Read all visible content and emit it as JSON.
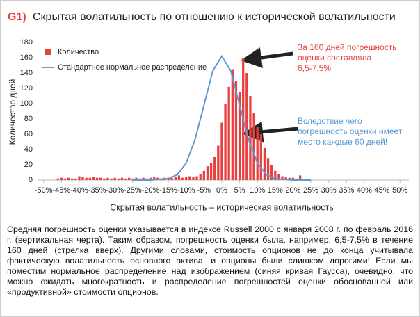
{
  "chart_data": {
    "type": "histogram-line",
    "label": "G1)",
    "title": "Скрытая волатильность по отношению  к исторической волатильности",
    "x_label": "Скрытая волатильность – историческая волатильность",
    "y_label": "Количество дней",
    "xlim": [
      -51.5,
      52.5
    ],
    "ylim": [
      0,
      180
    ],
    "grid": false,
    "legend": "upper-left",
    "yticks": [
      0,
      20,
      40,
      60,
      80,
      100,
      120,
      140,
      160,
      180
    ],
    "xticks": [
      {
        "value": -50,
        "label": "-50%"
      },
      {
        "value": -45,
        "label": "-45%"
      },
      {
        "value": -40,
        "label": "-40%"
      },
      {
        "value": -35,
        "label": "-35%"
      },
      {
        "value": -30,
        "label": "-30%"
      },
      {
        "value": -25,
        "label": "-25%"
      },
      {
        "value": -20,
        "label": "-20%"
      },
      {
        "value": -15,
        "label": "-15%"
      },
      {
        "value": -10,
        "label": "-10%"
      },
      {
        "value": -5,
        "label": "-5%"
      },
      {
        "value": 0,
        "label": "0%"
      },
      {
        "value": 5,
        "label": "5%"
      },
      {
        "value": 10,
        "label": "10%"
      },
      {
        "value": 15,
        "label": "15%"
      },
      {
        "value": 20,
        "label": "20%"
      },
      {
        "value": 25,
        "label": "25%"
      },
      {
        "value": 30,
        "label": "30%"
      },
      {
        "value": 35,
        "label": "35%"
      },
      {
        "value": 40,
        "label": "40%"
      },
      {
        "value": 45,
        "label": "45%"
      },
      {
        "value": 50,
        "label": "50%"
      }
    ],
    "series": [
      {
        "name": "Количество",
        "color": "#e8403f",
        "type": "bar",
        "x": [
          -46,
          -45,
          -44,
          -43,
          -42,
          -41,
          -40,
          -39,
          -38,
          -37,
          -36,
          -35,
          -34,
          -33,
          -32,
          -31,
          -30,
          -29,
          -28,
          -27,
          -26,
          -25,
          -24,
          -23,
          -22,
          -21,
          -20,
          -19,
          -18,
          -17,
          -16,
          -15,
          -14,
          -13,
          -12,
          -11,
          -10,
          -9,
          -8,
          -7,
          -6,
          -5,
          -4,
          -3,
          -2,
          -1,
          0,
          1,
          2,
          3,
          4,
          5,
          6,
          7,
          8,
          9,
          10,
          11,
          12,
          13,
          14,
          15,
          16,
          17,
          18,
          19,
          20,
          21,
          22
        ],
        "values": [
          2,
          3,
          2,
          3,
          2,
          2,
          5,
          4,
          3,
          3,
          4,
          3,
          3,
          2,
          3,
          2,
          3,
          2,
          3,
          2,
          3,
          2,
          3,
          2,
          3,
          2,
          3,
          4,
          3,
          2,
          3,
          2,
          3,
          4,
          6,
          3,
          4,
          5,
          4,
          5,
          8,
          12,
          18,
          22,
          30,
          45,
          75,
          100,
          122,
          145,
          130,
          115,
          160,
          140,
          110,
          88,
          70,
          60,
          42,
          28,
          20,
          12,
          8,
          5,
          4,
          3,
          3,
          2,
          6
        ]
      },
      {
        "name": "Стандартное нормальное распределение",
        "color": "#5b9bd5",
        "type": "line",
        "x": [
          -25,
          -20,
          -15,
          -12.5,
          -10,
          -7.5,
          -5,
          -2.5,
          0,
          2.5,
          5,
          7.5,
          10,
          12.5,
          15,
          20,
          25
        ],
        "values": [
          0,
          0,
          2,
          7,
          22,
          53,
          98,
          143,
          162,
          143,
          98,
          53,
          22,
          7,
          2,
          0,
          0
        ]
      }
    ],
    "annotations": [
      {
        "color": "#e8403f",
        "lines": [
          "За 160 дней погрешность",
          "оценки составляла",
          "6,5-7,5%"
        ]
      },
      {
        "color": "#5b9bd5",
        "lines": [
          "Вследствие чего",
          "погрешность оценки имеет",
          "место каждые 60 дней!"
        ]
      }
    ]
  },
  "paragraph": "Средняя погрешность оценки указывается в индексе Russell 2000 с января 2008 г. по февраль 2016 г. (вертикальная черта). Таким образом, погрешность оценки была, например, 6,5-7,5% в течение 160 дней (стрелка вверх). Другими словами, стоимость опционов не до конца учитывала фактическую волатильность основного актива, и опционы были слишком дорогими! Если мы поместим нормальное распределение над изображением (синяя кривая Гаусса), очевидно, что можно ожидать многократность и распределение погрешностей оценки обоснованной или «продуктивной» стоимости опционов."
}
